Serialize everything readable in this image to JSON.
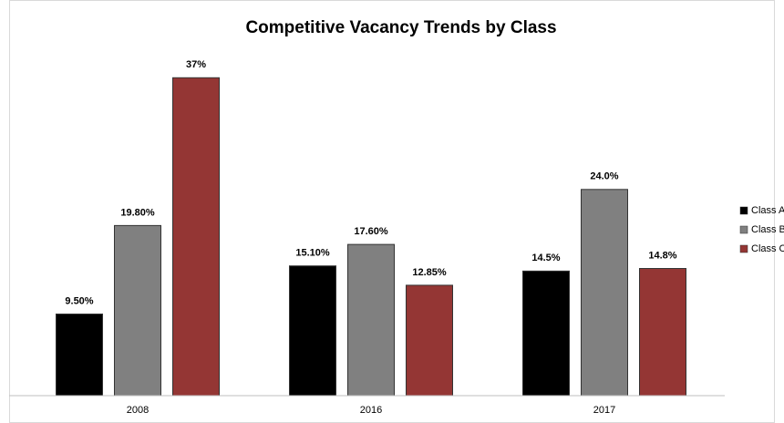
{
  "chart_data": {
    "type": "bar",
    "title": "Competitive Vacancy Trends by Class",
    "categories": [
      "2008",
      "2016",
      "2017"
    ],
    "series": [
      {
        "name": "Class A",
        "color": "#000000",
        "values": [
          9.5,
          15.1,
          14.5
        ],
        "value_labels": [
          "9.50%",
          "15.10%",
          "14.5%"
        ]
      },
      {
        "name": "Class B",
        "color": "#808080",
        "values": [
          19.8,
          17.6,
          24.0
        ],
        "value_labels": [
          "19.80%",
          "17.60%",
          "24.0%"
        ]
      },
      {
        "name": "Class C",
        "color": "#943634",
        "values": [
          37,
          12.85,
          14.8
        ],
        "value_labels": [
          "37%",
          "12.85%",
          "14.8%"
        ]
      }
    ],
    "ylim": [
      0,
      40
    ],
    "legend": "right"
  }
}
